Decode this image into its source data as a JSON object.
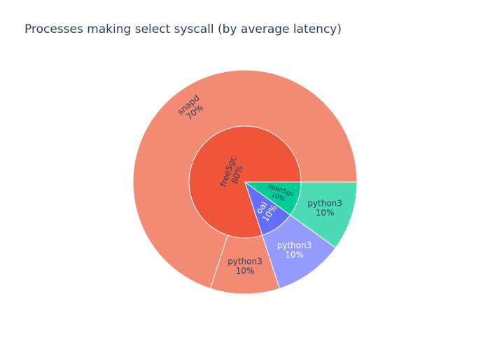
{
  "chart_data": {
    "type": "sunburst",
    "title": "Processes making select syscall (by average latency)",
    "inner_ring": [
      {
        "label": "free5gc",
        "value": 80,
        "percent_label": "80%",
        "color": "#ef553b"
      },
      {
        "label": "oai",
        "value": 10,
        "percent_label": "10%",
        "color": "#636efa"
      },
      {
        "label": "open5gs",
        "value": 10,
        "percent_label": "10%",
        "color": "#00cc96"
      }
    ],
    "outer_ring": [
      {
        "label": "snapd",
        "parent": "free5gc",
        "value": 70,
        "percent_label": "70%",
        "color": "#f38b74"
      },
      {
        "label": "python3",
        "parent": "free5gc",
        "value": 10,
        "percent_label": "10%",
        "color": "#f38b74"
      },
      {
        "label": "python3",
        "parent": "oai",
        "value": 10,
        "percent_label": "10%",
        "color": "#959bfc"
      },
      {
        "label": "python3",
        "parent": "open5gs",
        "value": 10,
        "percent_label": "10%",
        "color": "#4ddbb6"
      }
    ]
  }
}
